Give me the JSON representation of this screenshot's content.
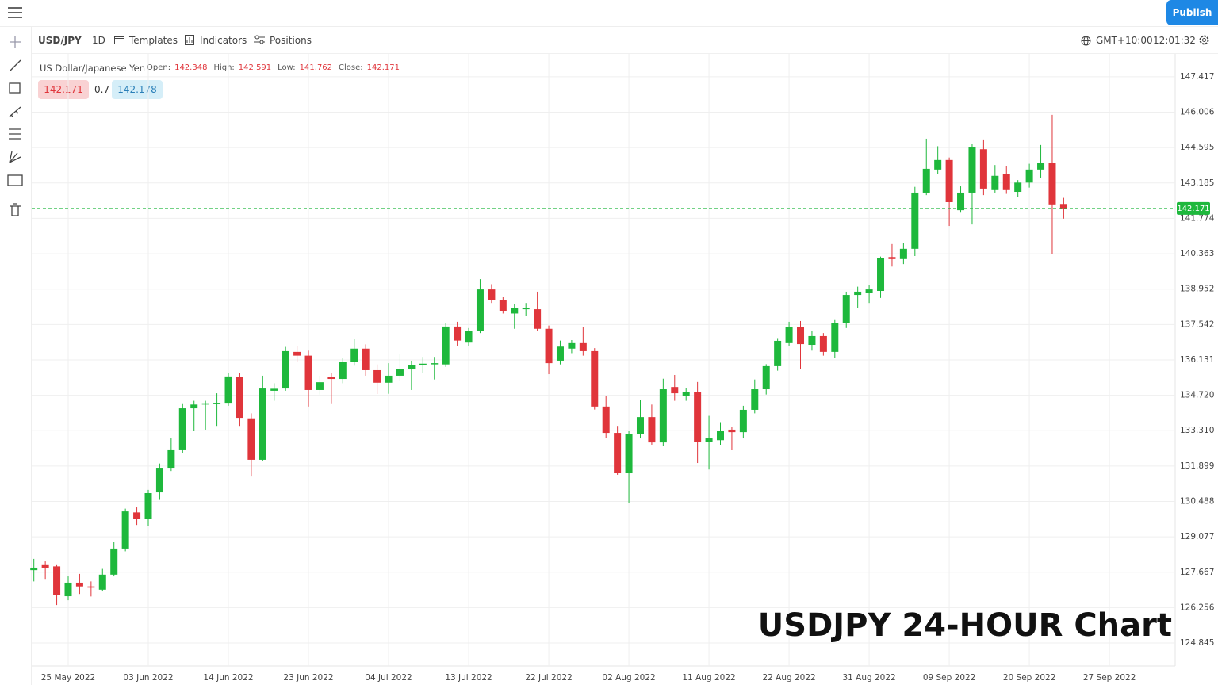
{
  "ui": {
    "toolbar": {
      "symbol": "USD/JPY",
      "interval": "1D",
      "templates": "Templates",
      "indicators": "Indicators",
      "positions": "Positions",
      "timezone": "GMT+10:00",
      "clock": "12:01:32",
      "publish": "Publish"
    },
    "legend": {
      "name": "US Dollar/Japanese Yen",
      "open": "Open:",
      "high": "High:",
      "low": "Low:",
      "close": "Close:"
    },
    "quote": {
      "bid": 142.171,
      "spread": 0.7,
      "ask": 142.178
    }
  },
  "chart_data": {
    "type": "candlestick",
    "title": "USDJPY 24-HOUR Chart",
    "up_color": "#1eb83c",
    "down_color": "#e0353b",
    "grid": true,
    "price_line_color": "#1eb83c",
    "x": [
      "2022-05-20",
      "2022-05-23",
      "2022-05-24",
      "2022-05-25",
      "2022-05-26",
      "2022-05-27",
      "2022-05-30",
      "2022-05-31",
      "2022-06-01",
      "2022-06-02",
      "2022-06-03",
      "2022-06-06",
      "2022-06-07",
      "2022-06-08",
      "2022-06-09",
      "2022-06-10",
      "2022-06-13",
      "2022-06-14",
      "2022-06-15",
      "2022-06-16",
      "2022-06-17",
      "2022-06-20",
      "2022-06-21",
      "2022-06-22",
      "2022-06-23",
      "2022-06-24",
      "2022-06-27",
      "2022-06-28",
      "2022-06-29",
      "2022-06-30",
      "2022-07-01",
      "2022-07-04",
      "2022-07-05",
      "2022-07-06",
      "2022-07-07",
      "2022-07-08",
      "2022-07-11",
      "2022-07-12",
      "2022-07-13",
      "2022-07-14",
      "2022-07-15",
      "2022-07-18",
      "2022-07-19",
      "2022-07-20",
      "2022-07-21",
      "2022-07-22",
      "2022-07-25",
      "2022-07-26",
      "2022-07-27",
      "2022-07-28",
      "2022-07-29",
      "2022-08-01",
      "2022-08-02",
      "2022-08-03",
      "2022-08-04",
      "2022-08-05",
      "2022-08-08",
      "2022-08-09",
      "2022-08-10",
      "2022-08-11",
      "2022-08-12",
      "2022-08-15",
      "2022-08-16",
      "2022-08-17",
      "2022-08-18",
      "2022-08-19",
      "2022-08-22",
      "2022-08-23",
      "2022-08-24",
      "2022-08-25",
      "2022-08-26",
      "2022-08-29",
      "2022-08-30",
      "2022-08-31",
      "2022-09-01",
      "2022-09-02",
      "2022-09-05",
      "2022-09-06",
      "2022-09-07",
      "2022-09-08",
      "2022-09-09",
      "2022-09-12",
      "2022-09-13",
      "2022-09-14",
      "2022-09-15",
      "2022-09-16",
      "2022-09-19",
      "2022-09-20",
      "2022-09-21",
      "2022-09-22",
      "2022-09-23"
    ],
    "open": [
      127.75,
      127.95,
      127.9,
      126.71,
      127.25,
      127.1,
      126.97,
      127.57,
      128.61,
      130.05,
      129.78,
      130.85,
      131.83,
      132.56,
      134.2,
      134.35,
      134.38,
      134.42,
      135.45,
      133.8,
      132.15,
      134.9,
      134.99,
      136.45,
      136.3,
      134.93,
      135.45,
      135.37,
      136.04,
      136.58,
      135.72,
      135.22,
      135.5,
      135.75,
      135.93,
      135.98,
      135.95,
      137.46,
      136.85,
      137.27,
      138.94,
      138.53,
      137.98,
      138.15,
      138.15,
      137.37,
      136.1,
      136.58,
      136.83,
      136.48,
      134.27,
      133.22,
      131.61,
      133.16,
      133.85,
      132.84,
      135.05,
      134.7,
      134.86,
      132.85,
      132.93,
      133.35,
      133.25,
      134.14,
      134.96,
      135.88,
      136.83,
      137.43,
      136.73,
      137.08,
      136.45,
      137.59,
      138.72,
      138.8,
      138.88,
      140.23,
      140.15,
      140.56,
      142.8,
      143.72,
      144.1,
      142.1,
      142.8,
      144.53,
      142.9,
      143.53,
      142.83,
      143.2,
      143.72,
      144.0,
      142.348
    ],
    "high": [
      128.2,
      128.1,
      127.95,
      127.5,
      127.6,
      127.3,
      127.8,
      128.86,
      130.2,
      130.25,
      130.95,
      132.0,
      133.0,
      134.4,
      134.5,
      134.5,
      134.8,
      135.6,
      135.6,
      134.0,
      135.5,
      135.2,
      136.65,
      136.68,
      136.5,
      135.5,
      135.6,
      136.2,
      136.98,
      136.75,
      135.95,
      136.0,
      136.36,
      136.1,
      136.25,
      136.25,
      137.6,
      137.65,
      137.4,
      139.35,
      139.15,
      138.65,
      138.37,
      138.4,
      138.85,
      137.5,
      136.9,
      136.92,
      137.45,
      136.6,
      134.7,
      133.5,
      133.3,
      134.52,
      134.35,
      135.38,
      135.53,
      135.0,
      135.25,
      133.9,
      133.65,
      133.45,
      134.3,
      135.35,
      135.96,
      137.0,
      137.65,
      137.68,
      137.3,
      137.2,
      137.75,
      138.85,
      139.05,
      139.1,
      140.25,
      140.75,
      140.8,
      143.03,
      144.95,
      144.65,
      144.2,
      143.05,
      144.75,
      144.92,
      143.9,
      143.85,
      143.3,
      143.95,
      144.7,
      145.9,
      142.591
    ],
    "low": [
      127.3,
      127.4,
      126.36,
      126.55,
      126.8,
      126.7,
      126.9,
      127.5,
      128.5,
      129.55,
      129.5,
      130.55,
      131.7,
      132.4,
      133.3,
      133.35,
      133.5,
      134.3,
      133.5,
      131.48,
      132.1,
      134.5,
      134.9,
      136.05,
      134.27,
      134.75,
      134.4,
      135.2,
      135.9,
      135.5,
      134.77,
      134.78,
      135.3,
      134.93,
      135.6,
      135.35,
      135.85,
      136.7,
      136.7,
      137.2,
      138.4,
      137.98,
      137.37,
      137.9,
      137.3,
      135.56,
      135.95,
      136.4,
      136.3,
      134.15,
      133.0,
      131.55,
      130.41,
      133.0,
      132.75,
      132.7,
      134.5,
      134.5,
      132.02,
      131.76,
      132.75,
      132.55,
      133.0,
      134.0,
      134.75,
      135.7,
      136.7,
      135.77,
      136.5,
      136.3,
      136.2,
      137.4,
      138.2,
      138.4,
      138.6,
      139.85,
      139.95,
      140.27,
      142.7,
      143.55,
      141.47,
      142.0,
      141.53,
      142.7,
      142.8,
      142.75,
      142.64,
      143.0,
      143.4,
      140.34,
      141.762
    ],
    "close": [
      127.85,
      127.85,
      126.77,
      127.25,
      127.1,
      127.05,
      127.57,
      128.61,
      130.09,
      129.78,
      130.82,
      131.83,
      132.56,
      134.2,
      134.35,
      134.4,
      134.42,
      135.47,
      133.82,
      132.15,
      134.99,
      134.98,
      136.48,
      136.3,
      134.93,
      135.24,
      135.37,
      136.04,
      136.58,
      135.72,
      135.22,
      135.5,
      135.78,
      135.93,
      135.98,
      136.0,
      137.46,
      136.9,
      137.27,
      138.94,
      138.53,
      138.09,
      138.2,
      138.2,
      137.37,
      136.0,
      136.66,
      136.83,
      136.48,
      134.27,
      133.22,
      131.61,
      133.16,
      133.85,
      132.84,
      134.96,
      134.8,
      134.85,
      132.87,
      133.0,
      133.31,
      133.25,
      134.14,
      134.96,
      135.88,
      136.89,
      137.43,
      136.76,
      137.08,
      136.45,
      137.59,
      138.72,
      138.85,
      138.94,
      140.18,
      140.15,
      140.56,
      142.8,
      143.75,
      144.1,
      142.42,
      142.8,
      144.6,
      142.96,
      143.47,
      142.9,
      143.2,
      143.72,
      144.0,
      142.33,
      142.171
    ],
    "ylim": [
      123.93,
      148.33
    ],
    "yticks": [
      147.417,
      146.006,
      144.595,
      143.185,
      141.774,
      140.363,
      138.952,
      137.542,
      136.131,
      {
        "value": 134.72,
        "label": "134.720"
      },
      {
        "value": 133.31,
        "label": "133.310"
      },
      131.899,
      130.488,
      129.077,
      127.667,
      126.256,
      124.845
    ],
    "xticks": [
      {
        "value": "2022-05-25",
        "label": "25 May 2022"
      },
      {
        "value": "2022-06-03",
        "label": "03 Jun 2022"
      },
      {
        "value": "2022-06-14",
        "label": "14 Jun 2022"
      },
      {
        "value": "2022-06-23",
        "label": "23 Jun 2022"
      },
      {
        "value": "2022-07-04",
        "label": "04 Jul 2022"
      },
      {
        "value": "2022-07-13",
        "label": "13 Jul 2022"
      },
      {
        "value": "2022-07-22",
        "label": "22 Jul 2022"
      },
      {
        "value": "2022-08-02",
        "label": "02 Aug 2022"
      },
      {
        "value": "2022-08-11",
        "label": "11 Aug 2022"
      },
      {
        "value": "2022-08-22",
        "label": "22 Aug 2022"
      },
      {
        "value": "2022-08-31",
        "label": "31 Aug 2022"
      },
      {
        "value": "2022-09-09",
        "label": "09 Sep 2022"
      },
      {
        "value": "2022-09-20",
        "label": "20 Sep 2022"
      },
      {
        "value": "2022-09-27",
        "label": "27 Sep 2022"
      }
    ]
  }
}
